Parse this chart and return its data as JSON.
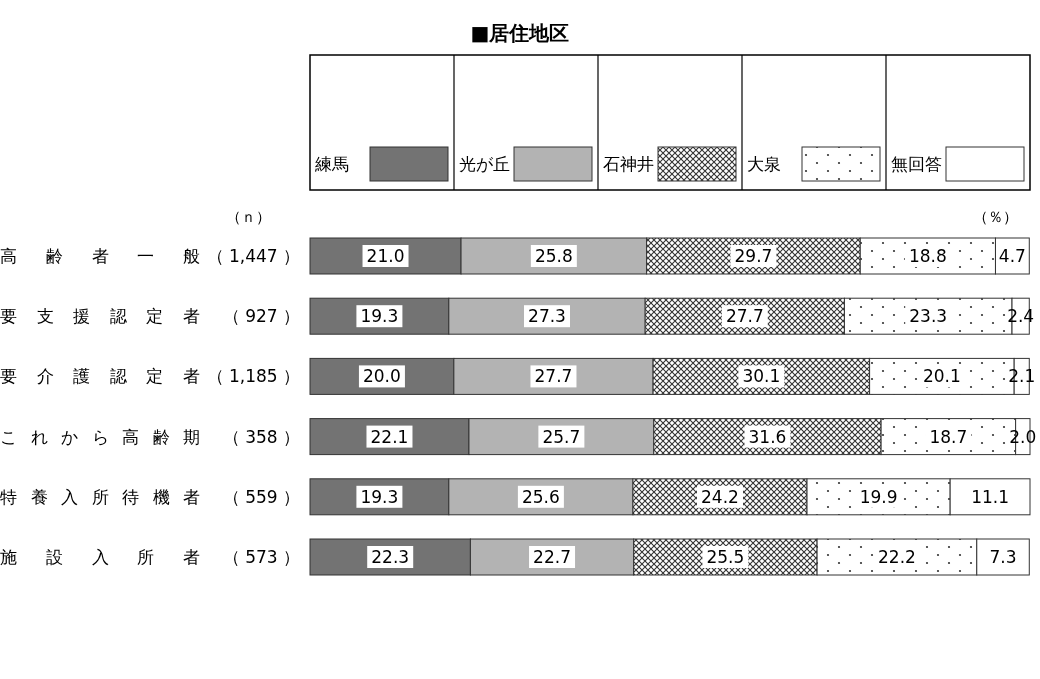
{
  "chart_data": {
    "type": "bar",
    "orientation": "horizontal",
    "stacked": true,
    "title": "■居住地区",
    "legend": "top",
    "annotations": [
      "（ｎ）",
      "（％）"
    ],
    "categories": [
      "高齢者一般（ 1,447 ）",
      "要支援認定者（ 927 ）",
      "要介護認定者（ 1,185 ）",
      "これから高齢期（ 358 ）",
      "特養入所待機者（ 559 ）",
      "施設入所者（ 573 ）"
    ],
    "series": [
      {
        "name": "練馬",
        "color": "#737373",
        "values": [
          21.0,
          19.3,
          20.0,
          22.1,
          19.3,
          22.3
        ],
        "value_labels": [
          "21.0",
          "19.3",
          "20.0",
          "22.1",
          "19.3",
          "22.3"
        ]
      },
      {
        "name": "光が丘",
        "color": "#b3b3b3",
        "values": [
          25.8,
          27.3,
          27.7,
          25.7,
          25.6,
          22.7
        ],
        "value_labels": [
          "25.8",
          "27.3",
          "27.7",
          "25.7",
          "25.6",
          "22.7"
        ]
      },
      {
        "name": "石神井",
        "color": "#333333",
        "values": [
          29.7,
          27.7,
          30.1,
          31.6,
          24.2,
          25.5
        ],
        "value_labels": [
          "29.7",
          "27.7",
          "30.1",
          "31.6",
          "24.2",
          "25.5"
        ]
      },
      {
        "name": "大泉",
        "color": "#333333",
        "values": [
          18.8,
          23.3,
          20.1,
          18.7,
          19.9,
          22.2
        ],
        "value_labels": [
          "18.8",
          "23.3",
          "20.1",
          "18.7",
          "19.9",
          "22.2"
        ]
      },
      {
        "name": "無回答",
        "color": "#ffffff",
        "values": [
          4.7,
          2.4,
          2.1,
          2.0,
          11.1,
          7.3
        ],
        "value_labels": [
          "4.7",
          "2.4",
          "2.1",
          "2.0",
          "11.1",
          "7.3"
        ]
      }
    ]
  }
}
